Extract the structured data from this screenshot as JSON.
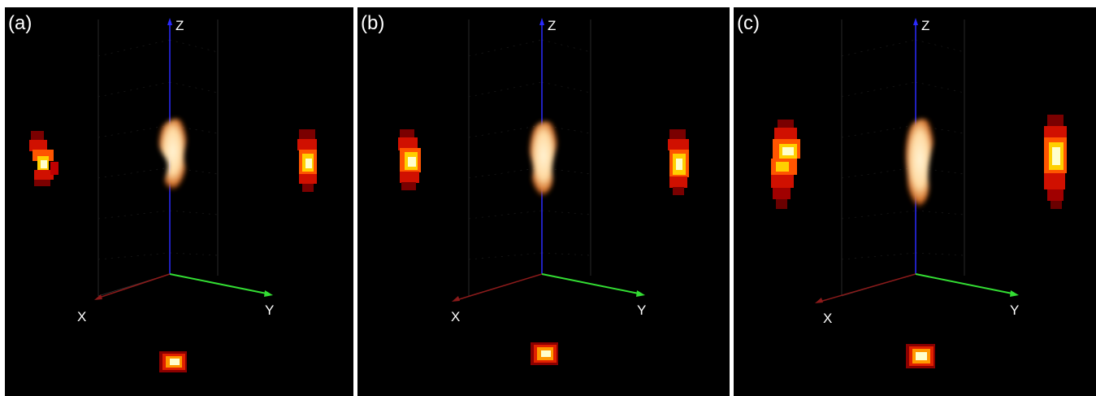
{
  "panels": [
    {
      "label": "(a)"
    },
    {
      "label": "(b)"
    },
    {
      "label": "(c)"
    }
  ],
  "axes": {
    "x_label": "X",
    "y_label": "Y",
    "z_label": "Z"
  },
  "colors": {
    "background": "#000000",
    "separator": "#ffffff",
    "x_axis": "#8b1a1a",
    "y_axis": "#33dd33",
    "z_axis": "#2a2aff",
    "heat_low": "#b00000",
    "heat_mid": "#ff6600",
    "heat_high": "#ffff99",
    "volume_glow": "#ffd9a0"
  }
}
